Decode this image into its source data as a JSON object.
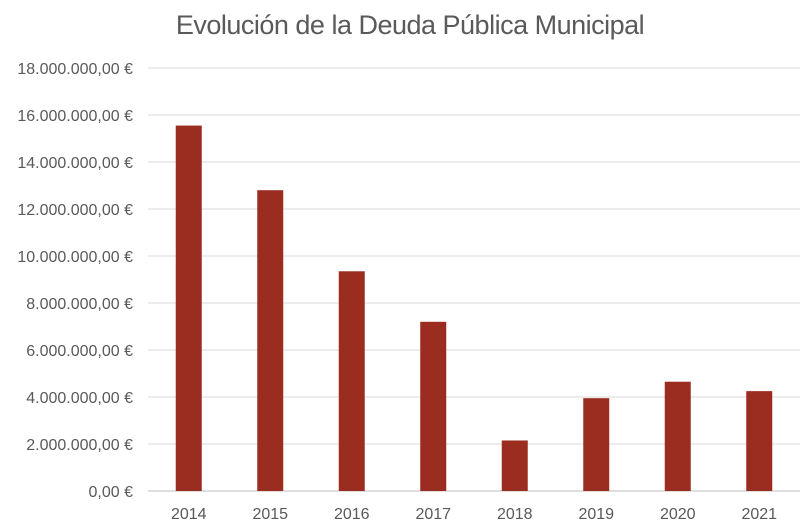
{
  "chart_data": {
    "type": "bar",
    "title": "Evolución de la Deuda Pública Municipal",
    "xlabel": "",
    "ylabel": "",
    "categories": [
      "2014",
      "2015",
      "2016",
      "2017",
      "2018",
      "2019",
      "2020",
      "2021"
    ],
    "values": [
      15550000,
      12800000,
      9350000,
      7200000,
      2150000,
      3950000,
      4650000,
      4250000
    ],
    "ylim": [
      0,
      18000000
    ],
    "yticks": [
      0,
      2000000,
      4000000,
      6000000,
      8000000,
      10000000,
      12000000,
      14000000,
      16000000,
      18000000
    ],
    "ytick_labels": [
      "0,00 €",
      "2.000.000,00 €",
      "4.000.000,00 €",
      "6.000.000,00 €",
      "8.000.000,00 €",
      "10.000.000,00 €",
      "12.000.000,00 €",
      "14.000.000,00 €",
      "16.000.000,00 €",
      "18.000.000,00 €"
    ],
    "grid": true,
    "legend": "none",
    "bar_color": "#9b2d20"
  }
}
